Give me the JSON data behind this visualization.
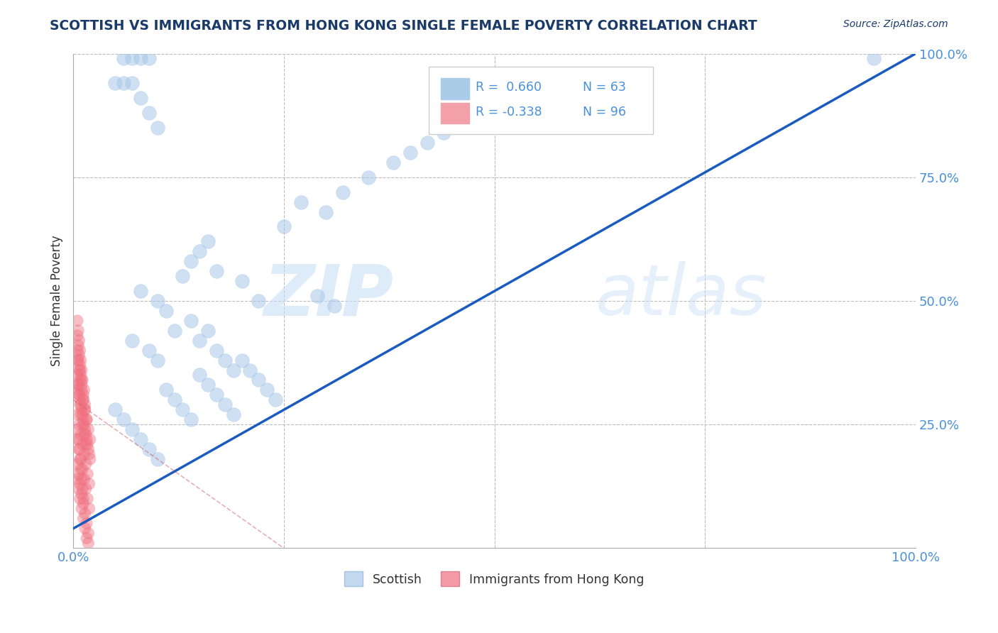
{
  "title": "SCOTTISH VS IMMIGRANTS FROM HONG KONG SINGLE FEMALE POVERTY CORRELATION CHART",
  "source": "Source: ZipAtlas.com",
  "ylabel": "Single Female Poverty",
  "xlabel": "",
  "xlim": [
    0,
    1.0
  ],
  "ylim": [
    0,
    1.0
  ],
  "legend_labels": [
    "Scottish",
    "Immigrants from Hong Kong"
  ],
  "legend_R_blue": "R =  0.660",
  "legend_N_blue": "N = 63",
  "legend_R_pink": "R = -0.338",
  "legend_N_pink": "N = 96",
  "blue_color": "#a8c8e8",
  "pink_color": "#f07080",
  "blue_line_color": "#1a5bbf",
  "pink_line_color": "#d06070",
  "watermark_zip": "ZIP",
  "watermark_atlas": "atlas",
  "background_color": "#ffffff",
  "grid_color": "#bbbbbb",
  "title_color": "#1a3a6a",
  "source_color": "#1a3a6a",
  "tick_color": "#4a90d9",
  "blue_scatter_x": [
    0.05,
    0.06,
    0.07,
    0.08,
    0.09,
    0.1,
    0.11,
    0.12,
    0.13,
    0.14,
    0.15,
    0.16,
    0.17,
    0.18,
    0.19,
    0.2,
    0.21,
    0.22,
    0.23,
    0.24,
    0.07,
    0.09,
    0.1,
    0.12,
    0.14,
    0.15,
    0.16,
    0.17,
    0.18,
    0.19,
    0.08,
    0.1,
    0.11,
    0.13,
    0.14,
    0.15,
    0.16,
    0.17,
    0.2,
    0.22,
    0.25,
    0.27,
    0.3,
    0.32,
    0.35,
    0.38,
    0.4,
    0.42,
    0.44,
    0.46,
    0.06,
    0.07,
    0.08,
    0.09,
    0.05,
    0.06,
    0.07,
    0.08,
    0.09,
    0.1,
    0.95,
    0.29,
    0.31
  ],
  "blue_scatter_y": [
    0.28,
    0.26,
    0.24,
    0.22,
    0.2,
    0.18,
    0.32,
    0.3,
    0.28,
    0.26,
    0.35,
    0.33,
    0.31,
    0.29,
    0.27,
    0.38,
    0.36,
    0.34,
    0.32,
    0.3,
    0.42,
    0.4,
    0.38,
    0.44,
    0.46,
    0.42,
    0.44,
    0.4,
    0.38,
    0.36,
    0.52,
    0.5,
    0.48,
    0.55,
    0.58,
    0.6,
    0.62,
    0.56,
    0.54,
    0.5,
    0.65,
    0.7,
    0.68,
    0.72,
    0.75,
    0.78,
    0.8,
    0.82,
    0.84,
    0.86,
    0.99,
    0.99,
    0.99,
    0.99,
    0.94,
    0.94,
    0.94,
    0.91,
    0.88,
    0.85,
    0.99,
    0.51,
    0.49
  ],
  "pink_scatter_x": [
    0.005,
    0.008,
    0.01,
    0.012,
    0.014,
    0.016,
    0.018,
    0.02,
    0.005,
    0.008,
    0.01,
    0.012,
    0.014,
    0.016,
    0.018,
    0.02,
    0.005,
    0.007,
    0.009,
    0.011,
    0.013,
    0.015,
    0.017,
    0.019,
    0.005,
    0.007,
    0.009,
    0.011,
    0.013,
    0.015,
    0.017,
    0.019,
    0.005,
    0.007,
    0.009,
    0.011,
    0.013,
    0.015,
    0.017,
    0.019,
    0.005,
    0.006,
    0.008,
    0.01,
    0.012,
    0.014,
    0.016,
    0.018,
    0.005,
    0.006,
    0.008,
    0.01,
    0.012,
    0.014,
    0.016,
    0.018,
    0.005,
    0.006,
    0.007,
    0.008,
    0.01,
    0.012,
    0.014,
    0.016,
    0.005,
    0.006,
    0.007,
    0.008,
    0.009,
    0.011,
    0.013,
    0.015,
    0.005,
    0.006,
    0.007,
    0.008,
    0.009,
    0.01,
    0.012,
    0.014,
    0.005,
    0.006,
    0.007,
    0.008,
    0.009,
    0.01,
    0.011,
    0.013,
    0.005,
    0.006,
    0.007,
    0.008,
    0.009,
    0.01,
    0.011,
    0.012
  ],
  "pink_scatter_y": [
    0.32,
    0.3,
    0.28,
    0.26,
    0.24,
    0.22,
    0.2,
    0.18,
    0.38,
    0.36,
    0.34,
    0.3,
    0.28,
    0.26,
    0.24,
    0.22,
    0.27,
    0.25,
    0.23,
    0.21,
    0.19,
    0.17,
    0.15,
    0.13,
    0.33,
    0.31,
    0.29,
    0.27,
    0.25,
    0.23,
    0.21,
    0.19,
    0.22,
    0.2,
    0.18,
    0.16,
    0.14,
    0.12,
    0.1,
    0.08,
    0.17,
    0.15,
    0.13,
    0.11,
    0.09,
    0.07,
    0.05,
    0.03,
    0.14,
    0.12,
    0.1,
    0.08,
    0.06,
    0.04,
    0.02,
    0.01,
    0.4,
    0.38,
    0.36,
    0.34,
    0.32,
    0.3,
    0.28,
    0.26,
    0.35,
    0.33,
    0.31,
    0.29,
    0.27,
    0.25,
    0.23,
    0.21,
    0.43,
    0.41,
    0.39,
    0.37,
    0.35,
    0.33,
    0.31,
    0.29,
    0.46,
    0.44,
    0.42,
    0.4,
    0.38,
    0.36,
    0.34,
    0.32,
    0.24,
    0.22,
    0.2,
    0.18,
    0.16,
    0.14,
    0.12,
    0.1
  ],
  "blue_line_x": [
    -0.01,
    1.0
  ],
  "blue_line_y": [
    0.03,
    1.0
  ],
  "pink_line_x": [
    0.0,
    0.25
  ],
  "pink_line_y": [
    0.3,
    0.0
  ],
  "ytick_positions": [
    0.25,
    0.5,
    0.75,
    1.0
  ],
  "ytick_labels": [
    "25.0%",
    "50.0%",
    "75.0%",
    "100.0%"
  ],
  "xtick_positions": [
    0.0,
    1.0
  ],
  "xtick_labels": [
    "0.0%",
    "100.0%"
  ]
}
